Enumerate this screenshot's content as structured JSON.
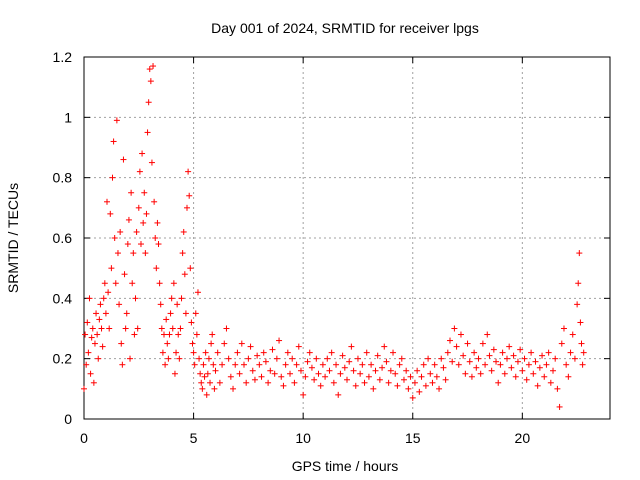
{
  "chart_data": {
    "type": "scatter",
    "title": "Day 001 of 2024, SRMTID for receiver lpgs",
    "xlabel": "GPS time / hours",
    "ylabel": "SRMTID / TECUs",
    "xlim": [
      0,
      24
    ],
    "ylim": [
      0,
      1.2
    ],
    "xticks": [
      0,
      5,
      10,
      15,
      20
    ],
    "xtick_labels": [
      "0",
      "5",
      "10",
      "15",
      "20"
    ],
    "yticks": [
      0,
      0.2,
      0.4,
      0.6,
      0.8,
      1.0,
      1.2
    ],
    "ytick_labels": [
      "0",
      "0.2",
      "0.4",
      "0.6",
      "0.8",
      "1",
      "1.2"
    ],
    "grid": true,
    "marker": "+",
    "color": "#ff0000",
    "series": [
      {
        "name": "SRMTID",
        "points": [
          [
            0.0,
            0.1
          ],
          [
            0.05,
            0.28
          ],
          [
            0.1,
            0.18
          ],
          [
            0.15,
            0.32
          ],
          [
            0.2,
            0.22
          ],
          [
            0.25,
            0.4
          ],
          [
            0.3,
            0.15
          ],
          [
            0.35,
            0.27
          ],
          [
            0.4,
            0.3
          ],
          [
            0.45,
            0.12
          ],
          [
            0.5,
            0.25
          ],
          [
            0.55,
            0.35
          ],
          [
            0.6,
            0.28
          ],
          [
            0.65,
            0.2
          ],
          [
            0.7,
            0.33
          ],
          [
            0.75,
            0.38
          ],
          [
            0.8,
            0.3
          ],
          [
            0.85,
            0.24
          ],
          [
            0.9,
            0.4
          ],
          [
            0.95,
            0.45
          ],
          [
            1.0,
            0.35
          ],
          [
            1.05,
            0.72
          ],
          [
            1.1,
            0.42
          ],
          [
            1.15,
            0.3
          ],
          [
            1.2,
            0.68
          ],
          [
            1.25,
            0.5
          ],
          [
            1.3,
            0.8
          ],
          [
            1.35,
            0.92
          ],
          [
            1.4,
            0.6
          ],
          [
            1.45,
            0.45
          ],
          [
            1.5,
            0.99
          ],
          [
            1.55,
            0.55
          ],
          [
            1.6,
            0.38
          ],
          [
            1.65,
            0.62
          ],
          [
            1.7,
            0.25
          ],
          [
            1.75,
            0.18
          ],
          [
            1.8,
            0.86
          ],
          [
            1.85,
            0.48
          ],
          [
            1.9,
            0.3
          ],
          [
            1.95,
            0.35
          ],
          [
            2.0,
            0.58
          ],
          [
            2.05,
            0.66
          ],
          [
            2.1,
            0.2
          ],
          [
            2.15,
            0.75
          ],
          [
            2.2,
            0.45
          ],
          [
            2.25,
            0.55
          ],
          [
            2.3,
            0.28
          ],
          [
            2.35,
            0.4
          ],
          [
            2.4,
            0.62
          ],
          [
            2.45,
            0.3
          ],
          [
            2.5,
            0.7
          ],
          [
            2.55,
            0.82
          ],
          [
            2.6,
            0.58
          ],
          [
            2.65,
            0.88
          ],
          [
            2.7,
            0.65
          ],
          [
            2.75,
            0.75
          ],
          [
            2.8,
            0.55
          ],
          [
            2.85,
            0.68
          ],
          [
            2.9,
            0.95
          ],
          [
            2.95,
            1.05
          ],
          [
            3.0,
            1.16
          ],
          [
            3.05,
            1.12
          ],
          [
            3.1,
            0.85
          ],
          [
            3.15,
            1.17
          ],
          [
            3.2,
            0.72
          ],
          [
            3.25,
            0.6
          ],
          [
            3.3,
            0.5
          ],
          [
            3.35,
            0.65
          ],
          [
            3.4,
            0.58
          ],
          [
            3.45,
            0.45
          ],
          [
            3.5,
            0.38
          ],
          [
            3.55,
            0.3
          ],
          [
            3.6,
            0.22
          ],
          [
            3.65,
            0.28
          ],
          [
            3.7,
            0.18
          ],
          [
            3.75,
            0.33
          ],
          [
            3.8,
            0.25
          ],
          [
            3.85,
            0.2
          ],
          [
            3.9,
            0.28
          ],
          [
            3.95,
            0.35
          ],
          [
            4.0,
            0.4
          ],
          [
            4.05,
            0.3
          ],
          [
            4.1,
            0.45
          ],
          [
            4.15,
            0.15
          ],
          [
            4.2,
            0.22
          ],
          [
            4.25,
            0.38
          ],
          [
            4.3,
            0.28
          ],
          [
            4.35,
            0.2
          ],
          [
            4.4,
            0.3
          ],
          [
            4.45,
            0.4
          ],
          [
            4.5,
            0.55
          ],
          [
            4.55,
            0.62
          ],
          [
            4.6,
            0.48
          ],
          [
            4.65,
            0.35
          ],
          [
            4.7,
            0.7
          ],
          [
            4.75,
            0.82
          ],
          [
            4.8,
            0.74
          ],
          [
            4.85,
            0.5
          ],
          [
            4.9,
            0.32
          ],
          [
            4.95,
            0.25
          ],
          [
            5.0,
            0.22
          ],
          [
            5.05,
            0.18
          ],
          [
            5.1,
            0.35
          ],
          [
            5.15,
            0.28
          ],
          [
            5.2,
            0.42
          ],
          [
            5.25,
            0.2
          ],
          [
            5.3,
            0.15
          ],
          [
            5.35,
            0.12
          ],
          [
            5.4,
            0.1
          ],
          [
            5.45,
            0.18
          ],
          [
            5.5,
            0.14
          ],
          [
            5.55,
            0.22
          ],
          [
            5.6,
            0.08
          ],
          [
            5.65,
            0.15
          ],
          [
            5.7,
            0.2
          ],
          [
            5.75,
            0.12
          ],
          [
            5.8,
            0.25
          ],
          [
            5.85,
            0.28
          ],
          [
            5.9,
            0.18
          ],
          [
            5.95,
            0.1
          ],
          [
            6.0,
            0.16
          ],
          [
            6.1,
            0.22
          ],
          [
            6.2,
            0.12
          ],
          [
            6.3,
            0.18
          ],
          [
            6.4,
            0.25
          ],
          [
            6.5,
            0.3
          ],
          [
            6.6,
            0.2
          ],
          [
            6.7,
            0.14
          ],
          [
            6.8,
            0.1
          ],
          [
            6.9,
            0.18
          ],
          [
            7.0,
            0.22
          ],
          [
            7.1,
            0.15
          ],
          [
            7.2,
            0.25
          ],
          [
            7.3,
            0.18
          ],
          [
            7.4,
            0.12
          ],
          [
            7.5,
            0.2
          ],
          [
            7.6,
            0.24
          ],
          [
            7.7,
            0.16
          ],
          [
            7.8,
            0.13
          ],
          [
            7.9,
            0.21
          ],
          [
            8.0,
            0.18
          ],
          [
            8.1,
            0.14
          ],
          [
            8.2,
            0.22
          ],
          [
            8.3,
            0.19
          ],
          [
            8.4,
            0.12
          ],
          [
            8.5,
            0.16
          ],
          [
            8.6,
            0.23
          ],
          [
            8.7,
            0.15
          ],
          [
            8.8,
            0.2
          ],
          [
            8.9,
            0.26
          ],
          [
            9.0,
            0.14
          ],
          [
            9.1,
            0.11
          ],
          [
            9.2,
            0.18
          ],
          [
            9.3,
            0.22
          ],
          [
            9.4,
            0.15
          ],
          [
            9.5,
            0.2
          ],
          [
            9.6,
            0.12
          ],
          [
            9.7,
            0.18
          ],
          [
            9.8,
            0.24
          ],
          [
            9.9,
            0.16
          ],
          [
            10.0,
            0.08
          ],
          [
            10.1,
            0.14
          ],
          [
            10.2,
            0.19
          ],
          [
            10.3,
            0.22
          ],
          [
            10.4,
            0.17
          ],
          [
            10.5,
            0.13
          ],
          [
            10.6,
            0.2
          ],
          [
            10.7,
            0.15
          ],
          [
            10.8,
            0.11
          ],
          [
            10.9,
            0.18
          ],
          [
            11.0,
            0.14
          ],
          [
            11.1,
            0.2
          ],
          [
            11.2,
            0.16
          ],
          [
            11.3,
            0.22
          ],
          [
            11.4,
            0.12
          ],
          [
            11.5,
            0.18
          ],
          [
            11.6,
            0.08
          ],
          [
            11.7,
            0.15
          ],
          [
            11.8,
            0.21
          ],
          [
            11.9,
            0.17
          ],
          [
            12.0,
            0.13
          ],
          [
            12.1,
            0.19
          ],
          [
            12.2,
            0.24
          ],
          [
            12.3,
            0.16
          ],
          [
            12.4,
            0.11
          ],
          [
            12.5,
            0.2
          ],
          [
            12.6,
            0.15
          ],
          [
            12.7,
            0.18
          ],
          [
            12.8,
            0.12
          ],
          [
            12.9,
            0.22
          ],
          [
            13.0,
            0.14
          ],
          [
            13.1,
            0.18
          ],
          [
            13.2,
            0.1
          ],
          [
            13.3,
            0.16
          ],
          [
            13.4,
            0.21
          ],
          [
            13.5,
            0.13
          ],
          [
            13.6,
            0.17
          ],
          [
            13.7,
            0.24
          ],
          [
            13.8,
            0.19
          ],
          [
            13.9,
            0.12
          ],
          [
            14.0,
            0.16
          ],
          [
            14.1,
            0.22
          ],
          [
            14.2,
            0.15
          ],
          [
            14.3,
            0.11
          ],
          [
            14.4,
            0.18
          ],
          [
            14.5,
            0.2
          ],
          [
            14.6,
            0.13
          ],
          [
            14.7,
            0.16
          ],
          [
            14.8,
            0.1
          ],
          [
            14.9,
            0.14
          ],
          [
            15.0,
            0.07
          ],
          [
            15.1,
            0.12
          ],
          [
            15.2,
            0.16
          ],
          [
            15.3,
            0.09
          ],
          [
            15.4,
            0.14
          ],
          [
            15.5,
            0.18
          ],
          [
            15.6,
            0.11
          ],
          [
            15.7,
            0.2
          ],
          [
            15.8,
            0.15
          ],
          [
            15.9,
            0.12
          ],
          [
            16.0,
            0.18
          ],
          [
            16.1,
            0.14
          ],
          [
            16.2,
            0.1
          ],
          [
            16.3,
            0.2
          ],
          [
            16.4,
            0.17
          ],
          [
            16.5,
            0.13
          ],
          [
            16.6,
            0.22
          ],
          [
            16.7,
            0.26
          ],
          [
            16.8,
            0.19
          ],
          [
            16.9,
            0.3
          ],
          [
            17.0,
            0.24
          ],
          [
            17.1,
            0.18
          ],
          [
            17.2,
            0.28
          ],
          [
            17.3,
            0.21
          ],
          [
            17.4,
            0.15
          ],
          [
            17.5,
            0.25
          ],
          [
            17.6,
            0.19
          ],
          [
            17.7,
            0.14
          ],
          [
            17.8,
            0.22
          ],
          [
            17.9,
            0.17
          ],
          [
            18.0,
            0.2
          ],
          [
            18.1,
            0.15
          ],
          [
            18.2,
            0.25
          ],
          [
            18.3,
            0.18
          ],
          [
            18.4,
            0.28
          ],
          [
            18.5,
            0.21
          ],
          [
            18.6,
            0.16
          ],
          [
            18.7,
            0.23
          ],
          [
            18.8,
            0.19
          ],
          [
            18.9,
            0.12
          ],
          [
            19.0,
            0.18
          ],
          [
            19.1,
            0.22
          ],
          [
            19.2,
            0.15
          ],
          [
            19.3,
            0.2
          ],
          [
            19.4,
            0.24
          ],
          [
            19.5,
            0.17
          ],
          [
            19.6,
            0.21
          ],
          [
            19.7,
            0.14
          ],
          [
            19.8,
            0.19
          ],
          [
            19.9,
            0.23
          ],
          [
            20.0,
            0.16
          ],
          [
            20.1,
            0.2
          ],
          [
            20.2,
            0.13
          ],
          [
            20.3,
            0.18
          ],
          [
            20.4,
            0.22
          ],
          [
            20.5,
            0.15
          ],
          [
            20.6,
            0.19
          ],
          [
            20.7,
            0.11
          ],
          [
            20.8,
            0.17
          ],
          [
            20.9,
            0.21
          ],
          [
            21.0,
            0.14
          ],
          [
            21.1,
            0.18
          ],
          [
            21.2,
            0.22
          ],
          [
            21.3,
            0.12
          ],
          [
            21.4,
            0.16
          ],
          [
            21.5,
            0.2
          ],
          [
            21.6,
            0.1
          ],
          [
            21.7,
            0.04
          ],
          [
            21.8,
            0.25
          ],
          [
            21.9,
            0.3
          ],
          [
            22.0,
            0.18
          ],
          [
            22.1,
            0.14
          ],
          [
            22.2,
            0.22
          ],
          [
            22.3,
            0.28
          ],
          [
            22.4,
            0.2
          ],
          [
            22.5,
            0.38
          ],
          [
            22.55,
            0.45
          ],
          [
            22.6,
            0.55
          ],
          [
            22.65,
            0.32
          ],
          [
            22.7,
            0.25
          ],
          [
            22.75,
            0.18
          ],
          [
            22.8,
            0.22
          ]
        ]
      }
    ]
  }
}
